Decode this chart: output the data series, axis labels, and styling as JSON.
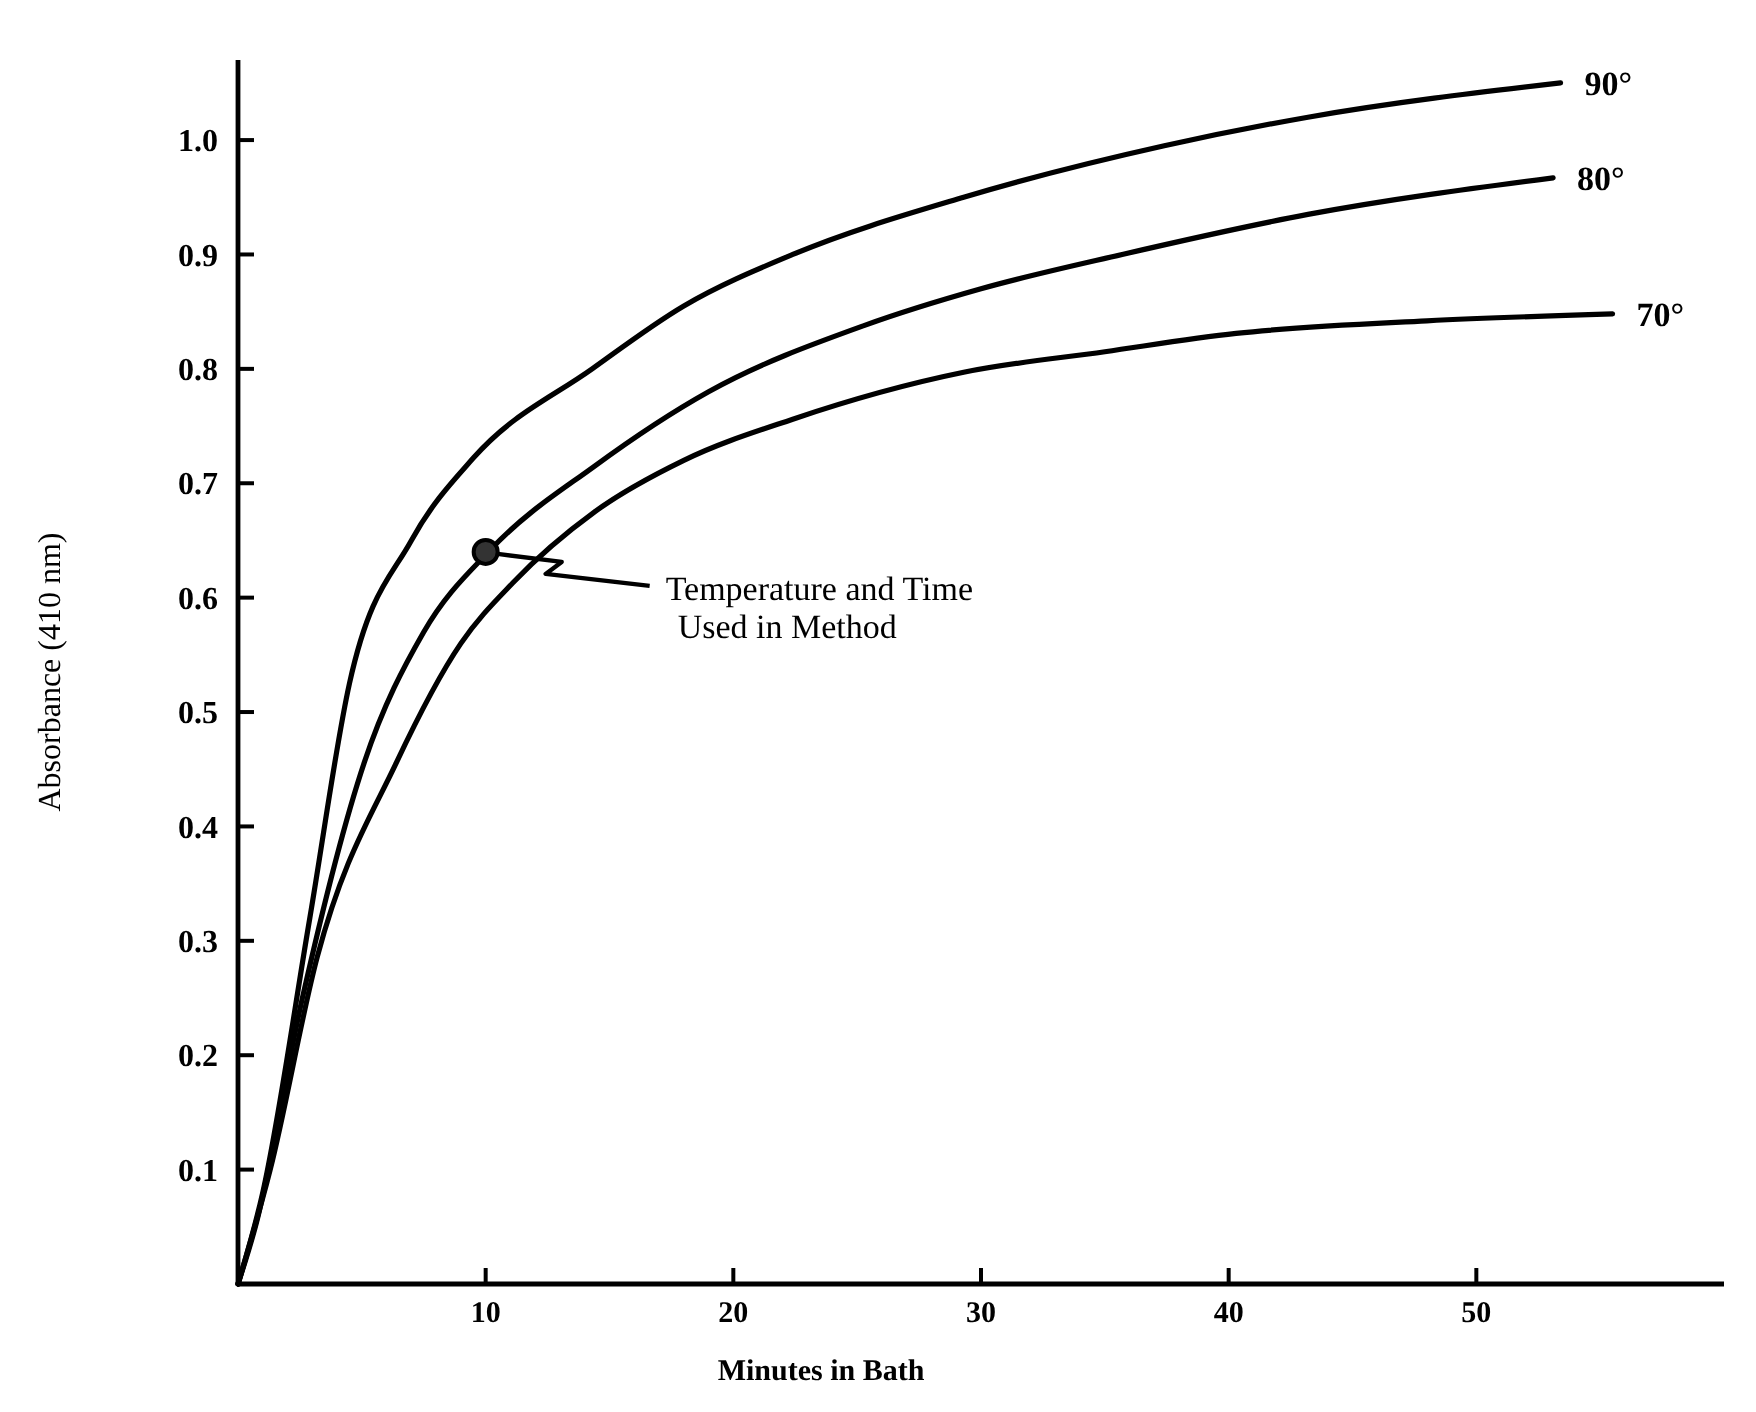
{
  "chart_data": {
    "type": "line",
    "xlabel": "Minutes in Bath",
    "ylabel": "Absorbance (410 nm)",
    "xlim": [
      0,
      60
    ],
    "ylim": [
      0,
      1.07
    ],
    "xticks": [
      10,
      20,
      30,
      40,
      50
    ],
    "yticks": [
      0.1,
      0.2,
      0.3,
      0.4,
      0.5,
      0.6,
      0.7,
      0.8,
      0.9,
      {
        "value": 1,
        "label": "1.0"
      }
    ],
    "grid": false,
    "marker": "none",
    "line_style": "solid",
    "series": [
      {
        "name": "90°",
        "color": "#000000",
        "x": [
          0,
          1,
          2.9,
          4.5,
          7,
          9.5,
          14.3,
          18,
          22.4,
          29.3,
          37.4,
          43.2,
          53.4
        ],
        "values": [
          0,
          0.08,
          0.32,
          0.525,
          0.65,
          0.722,
          0.8,
          0.855,
          0.9,
          0.95,
          0.995,
          1.02,
          1.05
        ]
      },
      {
        "name": "80°",
        "color": "#000000",
        "x": [
          0,
          0.7,
          2.6,
          5.1,
          7.5,
          10.2,
          14.4,
          19,
          25.3,
          30,
          35.7,
          43.2,
          53.1
        ],
        "values": [
          0,
          0.05,
          0.25,
          0.456,
          0.57,
          0.642,
          0.715,
          0.78,
          0.838,
          0.87,
          0.9,
          0.935,
          0.967
        ]
      },
      {
        "name": "70°",
        "color": "#000000",
        "x": [
          0,
          1.3,
          3.2,
          6.4,
          9,
          11.1,
          14.4,
          18,
          22.4,
          29.3,
          35,
          40.3,
          48,
          55.5
        ],
        "values": [
          0,
          0.1,
          0.286,
          0.456,
          0.56,
          0.613,
          0.675,
          0.72,
          0.756,
          0.797,
          0.815,
          0.831,
          0.842,
          0.848
        ]
      }
    ],
    "annotations": [
      {
        "text": "Temperature and Time\nUsed in Method",
        "x": 10,
        "y": 0.64
      }
    ]
  }
}
